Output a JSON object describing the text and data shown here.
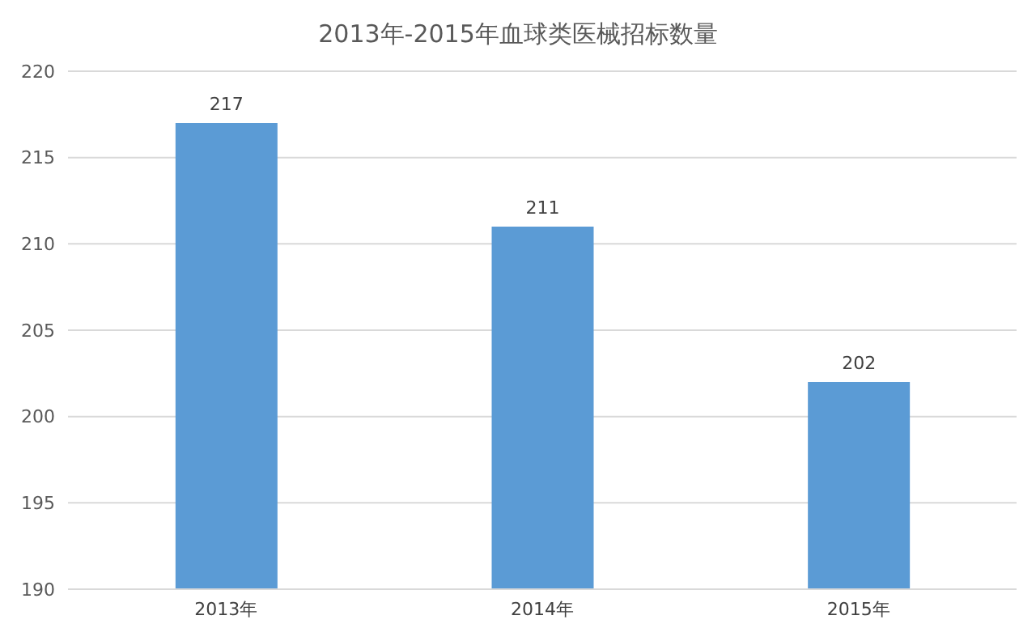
{
  "chart_data": {
    "type": "bar",
    "title": "2013年-2015年血球类医械招标数量",
    "categories": [
      "2013年",
      "2014年",
      "2015年"
    ],
    "values": [
      217,
      211,
      202
    ],
    "color": "#5b9bd5",
    "ylim": [
      190,
      220
    ],
    "yticks": [
      190,
      195,
      200,
      205,
      210,
      215,
      220
    ],
    "grid": "y",
    "data_labels": true
  }
}
